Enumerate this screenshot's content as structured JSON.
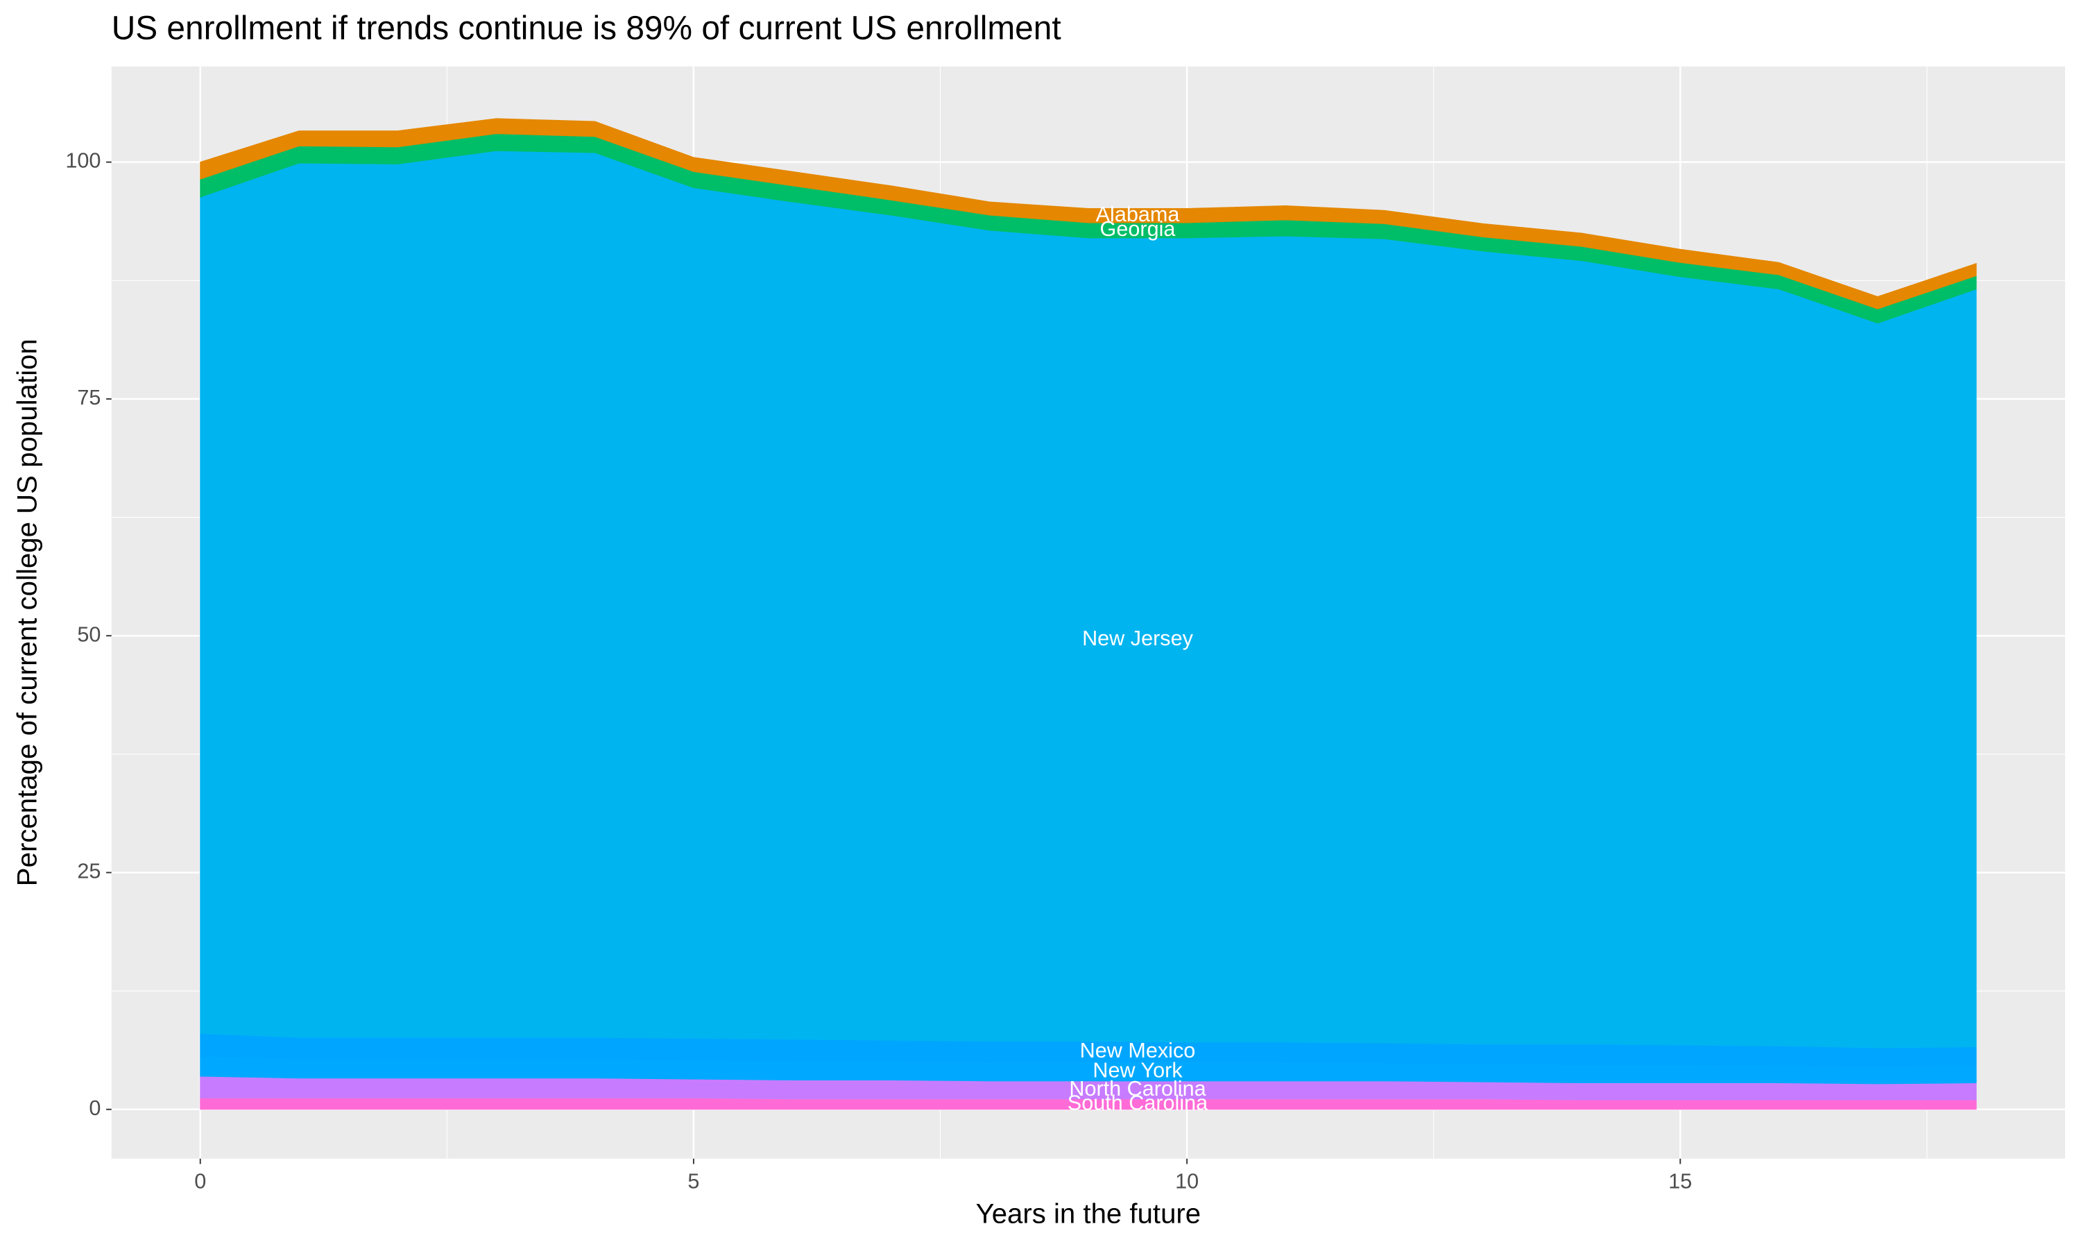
{
  "chart_data": {
    "type": "stacked-area",
    "title": "US enrollment if trends continue is 89% of current US enrollment",
    "x_label": "Years in the future",
    "y_label": "Percentage of current college US population",
    "x": [
      0,
      1,
      2,
      3,
      4,
      5,
      6,
      7,
      8,
      9,
      10,
      11,
      12,
      13,
      14,
      15,
      16,
      17,
      18
    ],
    "series": [
      {
        "name": "South Carolina",
        "color": "#ff6bd6",
        "values": [
          1.2,
          1.2,
          1.2,
          1.2,
          1.2,
          1.2,
          1.1,
          1.1,
          1.1,
          1.1,
          1.1,
          1.1,
          1.1,
          1.1,
          1.0,
          1.0,
          1.0,
          1.0,
          1.0
        ]
      },
      {
        "name": "North Carolina",
        "color": "#c77cff",
        "values": [
          2.3,
          2.1,
          2.1,
          2.1,
          2.1,
          2.0,
          2.0,
          2.0,
          1.9,
          1.9,
          1.9,
          1.9,
          1.9,
          1.8,
          1.8,
          1.8,
          1.8,
          1.7,
          1.8
        ]
      },
      {
        "name": "New York",
        "color": "#00a9ff",
        "values": [
          2.1,
          2.0,
          2.0,
          2.0,
          2.0,
          2.0,
          2.0,
          2.0,
          2.0,
          2.0,
          2.0,
          2.0,
          1.9,
          1.9,
          1.9,
          1.9,
          1.8,
          1.8,
          1.8
        ]
      },
      {
        "name": "New Mexico",
        "color": "#00a5ff",
        "values": [
          2.4,
          2.3,
          2.3,
          2.3,
          2.3,
          2.3,
          2.3,
          2.2,
          2.2,
          2.2,
          2.1,
          2.1,
          2.1,
          2.1,
          2.2,
          2.1,
          2.1,
          2.0,
          2.0
        ]
      },
      {
        "name": "New Jersey",
        "color": "#00b4f0",
        "values": [
          88.3,
          92.3,
          92.2,
          93.6,
          93.4,
          89.8,
          88.4,
          87.1,
          85.6,
          84.8,
          84.9,
          85.1,
          84.9,
          83.7,
          82.7,
          81.1,
          79.9,
          76.5,
          80.0
        ]
      },
      {
        "name": "Georgia",
        "color": "#00be67",
        "values": [
          1.9,
          1.8,
          1.8,
          1.8,
          1.7,
          1.7,
          1.7,
          1.6,
          1.6,
          1.6,
          1.6,
          1.7,
          1.6,
          1.5,
          1.5,
          1.5,
          1.5,
          1.5,
          1.4
        ]
      },
      {
        "name": "Alabama",
        "color": "#e58700",
        "values": [
          1.8,
          1.6,
          1.7,
          1.6,
          1.6,
          1.5,
          1.5,
          1.5,
          1.4,
          1.5,
          1.5,
          1.5,
          1.4,
          1.4,
          1.4,
          1.4,
          1.3,
          1.3,
          1.3
        ]
      }
    ],
    "xlim": [
      -0.9,
      18.9
    ],
    "ylim": [
      -5.2,
      110.1
    ],
    "xticks": [
      0,
      5,
      10,
      15
    ],
    "yticks": [
      0,
      25,
      50,
      75,
      100
    ],
    "grid": true
  }
}
